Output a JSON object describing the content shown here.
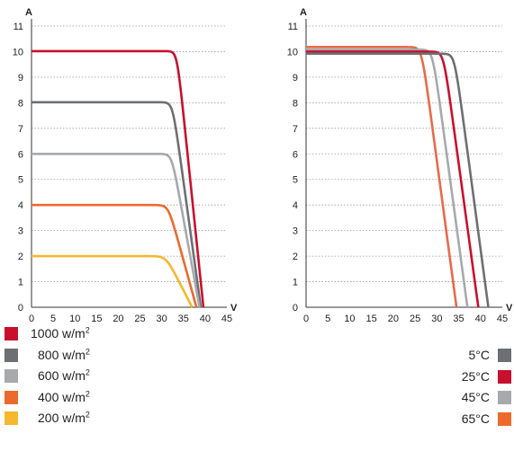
{
  "colors": {
    "dark_red": "#c8102e",
    "dark_gray": "#6d6f73",
    "light_gray": "#a7a9ac",
    "orange": "#ec6a2c",
    "yellow": "#f5b82e",
    "salmon": "#e76b4a",
    "grid": "#9a9a9a",
    "axis": "#333333"
  },
  "chart_data": [
    {
      "type": "line",
      "title": "",
      "xlabel": "V",
      "ylabel": "A",
      "xlim": [
        0,
        45
      ],
      "ylim": [
        0,
        11
      ],
      "xticks": [
        "0",
        "5",
        "10",
        "15",
        "20",
        "25",
        "30",
        "35",
        "40",
        "45"
      ],
      "yticks": [
        "0",
        "1",
        "2",
        "3",
        "4",
        "5",
        "6",
        "7",
        "8",
        "9",
        "10",
        "11"
      ],
      "grid": "horizontal dotted",
      "legend": {
        "placement": "below-left",
        "entries": [
          {
            "value": "1000",
            "unit": "w/m",
            "exp": "2",
            "color": "#c8102e"
          },
          {
            "value": "800",
            "unit": "w/m",
            "exp": "2",
            "color": "#6d6f73"
          },
          {
            "value": "600",
            "unit": "w/m",
            "exp": "2",
            "color": "#a7a9ac"
          },
          {
            "value": "400",
            "unit": "w/m",
            "exp": "2",
            "color": "#ec6a2c"
          },
          {
            "value": "200",
            "unit": "w/m",
            "exp": "2",
            "color": "#f5b82e"
          }
        ]
      },
      "series": [
        {
          "color": "#c8102e",
          "isc": 10.02,
          "voc": 39.6,
          "knee": 33.5,
          "rounding": 1.6
        },
        {
          "color": "#6d6f73",
          "isc": 8.02,
          "voc": 39.0,
          "knee": 32.5,
          "rounding": 1.6
        },
        {
          "color": "#a7a9ac",
          "isc": 6.0,
          "voc": 38.7,
          "knee": 32.3,
          "rounding": 1.6
        },
        {
          "color": "#ec6a2c",
          "isc": 4.0,
          "voc": 38.0,
          "knee": 31.5,
          "rounding": 1.6
        },
        {
          "color": "#f5b82e",
          "isc": 2.0,
          "voc": 37.0,
          "knee": 31.0,
          "rounding": 1.6
        }
      ]
    },
    {
      "type": "line",
      "title": "",
      "xlabel": "V",
      "ylabel": "A",
      "xlim": [
        0,
        45
      ],
      "ylim": [
        0,
        11
      ],
      "xticks": [
        "0",
        "5",
        "10",
        "15",
        "20",
        "25",
        "30",
        "35",
        "40",
        "45"
      ],
      "yticks": [
        "0",
        "1",
        "2",
        "3",
        "4",
        "5",
        "6",
        "7",
        "8",
        "9",
        "10",
        "11"
      ],
      "grid": "horizontal dotted",
      "legend": {
        "placement": "below-right",
        "entries": [
          {
            "label": "5°C",
            "color": "#6d6f73"
          },
          {
            "label": "25°C",
            "color": "#c8102e"
          },
          {
            "label": "45°C",
            "color": "#a7a9ac"
          },
          {
            "label": "65°C",
            "color": "#ec6a2c"
          }
        ]
      },
      "series": [
        {
          "color": "#e76b4a",
          "isc": 10.18,
          "voc": 34.5,
          "knee": 26.5,
          "rounding": 1.4
        },
        {
          "color": "#a7a9ac",
          "isc": 10.08,
          "voc": 37.0,
          "knee": 29.0,
          "rounding": 1.4
        },
        {
          "color": "#c8102e",
          "isc": 10.0,
          "voc": 39.5,
          "knee": 31.5,
          "rounding": 1.4
        },
        {
          "color": "#6d6f73",
          "isc": 9.92,
          "voc": 41.8,
          "knee": 34.0,
          "rounding": 1.4
        }
      ]
    }
  ]
}
